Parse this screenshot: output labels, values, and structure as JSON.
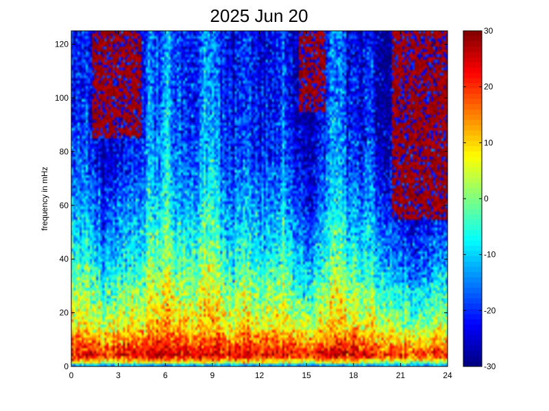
{
  "chart_data": {
    "type": "heatmap",
    "title": "2025 Jun 20",
    "xlabel": "",
    "ylabel": "frequency in mHz",
    "x_range": [
      0,
      24
    ],
    "y_range": [
      0,
      125
    ],
    "x_ticks": [
      0,
      3,
      6,
      9,
      12,
      15,
      18,
      21,
      24
    ],
    "y_ticks": [
      0,
      20,
      40,
      60,
      80,
      100,
      120
    ],
    "colorbar": {
      "range": [
        -30,
        30
      ],
      "ticks": [
        -30,
        -20,
        -10,
        0,
        10,
        20,
        30
      ],
      "colormap": "jet"
    },
    "grid_resolution": {
      "x_cells": 182,
      "y_cells": 128
    },
    "random_seed": 20250620,
    "baseline_profile": [
      {
        "freq": 0,
        "value": -12
      },
      {
        "freq": 1,
        "value": 2
      },
      {
        "freq": 4,
        "value": 25
      },
      {
        "freq": 8,
        "value": 18
      },
      {
        "freq": 15,
        "value": 8
      },
      {
        "freq": 25,
        "value": 2
      },
      {
        "freq": 40,
        "value": -6
      },
      {
        "freq": 60,
        "value": -14
      },
      {
        "freq": 80,
        "value": -20
      },
      {
        "freq": 100,
        "value": -22
      },
      {
        "freq": 125,
        "value": -23
      }
    ],
    "time_modulation": [
      {
        "hour": 0,
        "value": 2
      },
      {
        "hour": 1,
        "value": 0
      },
      {
        "hour": 2,
        "value": -6
      },
      {
        "hour": 4,
        "value": -2
      },
      {
        "hour": 6,
        "value": 3
      },
      {
        "hour": 8,
        "value": 2
      },
      {
        "hour": 10,
        "value": 1
      },
      {
        "hour": 12,
        "value": 0
      },
      {
        "hour": 14,
        "value": -3
      },
      {
        "hour": 15,
        "value": -8
      },
      {
        "hour": 16.5,
        "value": 0
      },
      {
        "hour": 18,
        "value": -2
      },
      {
        "hour": 20,
        "value": -6
      },
      {
        "hour": 22,
        "value": -14
      },
      {
        "hour": 24,
        "value": -8
      }
    ],
    "bright_streaks_hours": [
      5.0,
      6.1,
      8.5,
      9.0,
      13.5,
      16.6,
      17.2,
      19.0
    ],
    "high_band_patches": [
      {
        "hour_start": 1.3,
        "hour_end": 4.5,
        "freq_min": 85,
        "value": 30
      },
      {
        "hour_start": 14.5,
        "hour_end": 16.2,
        "freq_min": 95,
        "value": 30
      },
      {
        "hour_start": 20.5,
        "hour_end": 24,
        "freq_min": 55,
        "value": 30
      }
    ]
  }
}
